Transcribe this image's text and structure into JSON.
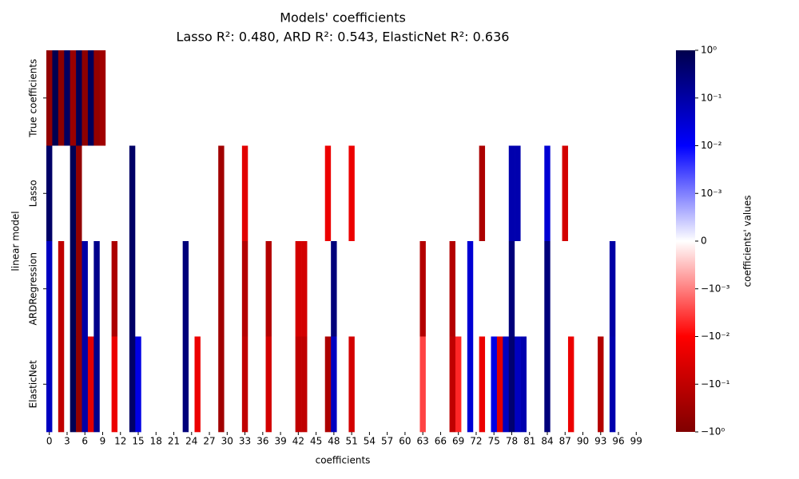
{
  "chart_data": {
    "type": "heatmap",
    "title": "Models' coefficients",
    "subtitle": "Lasso R²: 0.480, ARD R²: 0.543, ElasticNet R²: 0.636",
    "xlabel": "coefficients",
    "ylabel": "linear model",
    "colorbar_label": "coefficients' values",
    "rows": [
      "True coefficients",
      "Lasso",
      "ARDRegression",
      "ElasticNet"
    ],
    "xticks": [
      0,
      3,
      6,
      9,
      12,
      15,
      18,
      21,
      24,
      27,
      30,
      33,
      36,
      39,
      42,
      45,
      48,
      51,
      54,
      57,
      60,
      63,
      66,
      69,
      72,
      75,
      78,
      81,
      84,
      87,
      90,
      93,
      96,
      99
    ],
    "norm": "symlog",
    "linthresh": 0.001,
    "clim": [
      -1,
      1
    ],
    "colormap": [
      "#800000",
      "#ff0000",
      "#ffffff",
      "#0000ff",
      "#00004c"
    ],
    "cticks": [
      {
        "value": 1,
        "label": "10⁰"
      },
      {
        "value": 0.1,
        "label": "10⁻¹"
      },
      {
        "value": 0.01,
        "label": "10⁻²"
      },
      {
        "value": 0.001,
        "label": "10⁻³"
      },
      0,
      {
        "value": -0.001,
        "label": "−10⁻³"
      },
      {
        "value": -0.01,
        "label": "−10⁻²"
      },
      {
        "value": -0.1,
        "label": "−10⁻¹"
      },
      {
        "value": -1,
        "label": "−10⁰"
      }
    ],
    "z": [
      [
        -0.5,
        0.9,
        -0.7,
        0.6,
        -0.4,
        0.8,
        -0.6,
        0.7,
        -0.5,
        -0.3,
        0,
        0,
        0,
        0,
        0,
        0,
        0,
        0,
        0,
        0,
        0,
        0,
        0,
        0,
        0,
        0,
        0,
        0,
        0,
        0,
        0,
        0,
        0,
        0,
        0,
        0,
        0,
        0,
        0,
        0,
        0,
        0,
        0,
        0,
        0,
        0,
        0,
        0,
        0,
        0,
        0,
        0,
        0,
        0,
        0,
        0,
        0,
        0,
        0,
        0,
        0,
        0,
        0,
        0,
        0,
        0,
        0,
        0,
        0,
        0,
        0,
        0,
        0,
        0,
        0,
        0,
        0,
        0,
        0,
        0,
        0,
        0,
        0,
        0,
        0,
        0,
        0,
        0,
        0,
        0,
        0,
        0,
        0,
        0,
        0,
        0,
        0,
        0,
        0,
        0
      ],
      [
        0.5,
        0,
        0,
        0,
        0.8,
        -0.5,
        0,
        0,
        0,
        0,
        0,
        0,
        0,
        0,
        0.5,
        0,
        0,
        0,
        0,
        0,
        0,
        0,
        0,
        0,
        0,
        0,
        0,
        0,
        0,
        -0.3,
        0,
        0,
        0,
        -0.03,
        0,
        0,
        0,
        0,
        0,
        0,
        0,
        0,
        0,
        0,
        0,
        0,
        0,
        -0.02,
        0,
        0,
        0,
        -0.02,
        0,
        0,
        0,
        0,
        0,
        0,
        0,
        0,
        0,
        0,
        0,
        0,
        0,
        0,
        0,
        0,
        0,
        0,
        0,
        0,
        0,
        -0.2,
        0,
        0,
        0,
        0,
        0.08,
        0.08,
        0,
        0,
        0,
        0,
        0.03,
        0,
        0,
        -0.05,
        0,
        0,
        0,
        0,
        0,
        0,
        0,
        0,
        0,
        0,
        0,
        0
      ],
      [
        0.05,
        0,
        -0.1,
        0,
        0.8,
        -0.5,
        0.1,
        0,
        0.2,
        0,
        0,
        -0.2,
        0,
        0,
        0.5,
        0,
        0,
        0,
        0,
        0,
        0,
        0,
        0,
        0.3,
        0,
        0,
        0,
        0,
        0,
        -0.3,
        0,
        0,
        0,
        -0.15,
        0,
        0,
        0,
        -0.15,
        0,
        0,
        0,
        0,
        -0.05,
        -0.05,
        0,
        0,
        0,
        0,
        0.3,
        0,
        0,
        0,
        0,
        0,
        0,
        0,
        0,
        0,
        0,
        0,
        0,
        0,
        0,
        -0.15,
        0,
        0,
        0,
        0,
        -0.15,
        0,
        0,
        0.03,
        0,
        0,
        0,
        0,
        0,
        0,
        0.3,
        0,
        0,
        0,
        0,
        0,
        0.3,
        0,
        0,
        0,
        0,
        0,
        0,
        0,
        0,
        0,
        0,
        0.1,
        0,
        0,
        0,
        0
      ],
      [
        0.05,
        0,
        -0.1,
        0,
        0.8,
        -0.5,
        0.1,
        -0.03,
        0.2,
        0,
        0,
        -0.02,
        0,
        0,
        0.5,
        0.02,
        0,
        0,
        0,
        0,
        0,
        0,
        0,
        0.3,
        0,
        -0.02,
        0,
        0,
        0,
        -0.3,
        0,
        0,
        0,
        -0.1,
        0,
        0,
        0,
        -0.05,
        0,
        0,
        0,
        0,
        -0.1,
        -0.1,
        0,
        0,
        0,
        -0.2,
        0.05,
        0,
        0,
        -0.05,
        0,
        0,
        0,
        0,
        0,
        0,
        0,
        0,
        0,
        0,
        0,
        -0.003,
        0,
        0,
        0,
        0,
        -0.1,
        -0.005,
        0,
        0.03,
        0,
        -0.02,
        0,
        0.02,
        -0.03,
        0.05,
        0.4,
        0.05,
        0.08,
        0,
        0,
        0,
        0.3,
        0,
        0,
        0,
        -0.02,
        0,
        0,
        0,
        0,
        -0.15,
        0,
        0.08,
        0,
        0,
        0,
        0
      ]
    ]
  }
}
